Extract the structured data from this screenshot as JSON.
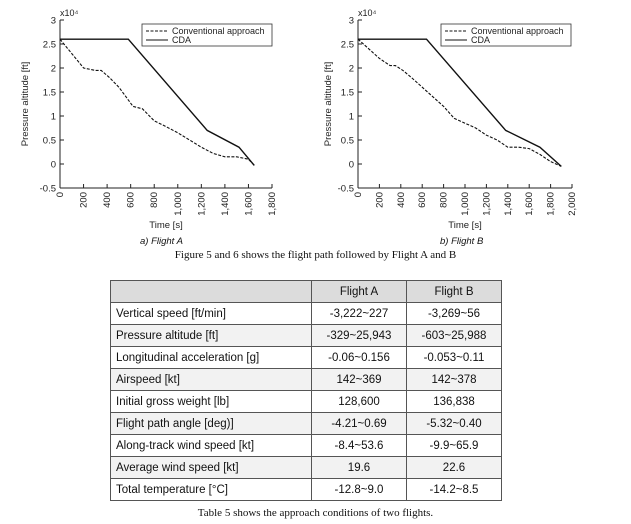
{
  "figure_caption": "Figure 5 and 6 shows the flight path followed by Flight A and B",
  "table_caption": "Table 5 shows the approach conditions of two flights.",
  "chart_data": [
    {
      "type": "line",
      "subcaption": "a) Flight A",
      "xlabel": "Time [s]",
      "ylabel": "Pressure altitude [ft]",
      "exponent_label": "x10⁴",
      "xlim": [
        0,
        1800
      ],
      "ylim": [
        -0.5,
        3
      ],
      "xticks": [
        "0",
        "200",
        "400",
        "600",
        "800",
        "1,000",
        "1,200",
        "1,400",
        "1,600",
        "1,800"
      ],
      "yticks": [
        "-0.5",
        "0",
        "0.5",
        "1",
        "1.5",
        "2",
        "2.5",
        "3"
      ],
      "legend_position": "top-right",
      "series": [
        {
          "name": "Conventional approach",
          "style": "dashed",
          "x": [
            0,
            100,
            200,
            300,
            350,
            420,
            500,
            560,
            620,
            700,
            800,
            900,
            1000,
            1100,
            1200,
            1300,
            1400,
            1500,
            1600,
            1650
          ],
          "y": [
            2.6,
            2.3,
            2.0,
            1.95,
            1.95,
            1.8,
            1.6,
            1.4,
            1.2,
            1.15,
            0.9,
            0.78,
            0.65,
            0.5,
            0.35,
            0.22,
            0.15,
            0.15,
            0.1,
            -0.03
          ]
        },
        {
          "name": "CDA",
          "style": "solid",
          "x": [
            0,
            580,
            1250,
            1520,
            1650
          ],
          "y": [
            2.6,
            2.6,
            0.7,
            0.35,
            -0.03
          ]
        }
      ]
    },
    {
      "type": "line",
      "subcaption": "b) Flight B",
      "xlabel": "Time [s]",
      "ylabel": "Pressure altitude [ft]",
      "exponent_label": "x10⁴",
      "xlim": [
        0,
        2000
      ],
      "ylim": [
        -0.5,
        3
      ],
      "xticks": [
        "0",
        "200",
        "400",
        "600",
        "800",
        "1,000",
        "1,200",
        "1,400",
        "1,600",
        "1,800",
        "2,000"
      ],
      "yticks": [
        "-0.5",
        "0",
        "0.5",
        "1",
        "1.5",
        "2",
        "2.5",
        "3"
      ],
      "legend_position": "top-right",
      "series": [
        {
          "name": "Conventional approach",
          "style": "dashed",
          "x": [
            0,
            100,
            200,
            300,
            350,
            420,
            500,
            600,
            700,
            800,
            900,
            1000,
            1100,
            1200,
            1300,
            1400,
            1500,
            1600,
            1700,
            1800,
            1900
          ],
          "y": [
            2.6,
            2.4,
            2.2,
            2.05,
            2.05,
            1.95,
            1.8,
            1.6,
            1.4,
            1.2,
            0.95,
            0.85,
            0.75,
            0.6,
            0.5,
            0.35,
            0.35,
            0.32,
            0.2,
            0.05,
            -0.05
          ]
        },
        {
          "name": "CDA",
          "style": "solid",
          "x": [
            0,
            640,
            1380,
            1700,
            1900
          ],
          "y": [
            2.6,
            2.6,
            0.7,
            0.35,
            -0.05
          ]
        }
      ]
    }
  ],
  "table": {
    "columns": [
      "",
      "Flight A",
      "Flight B"
    ],
    "rows": [
      [
        "Vertical speed [ft/min]",
        "-3,222~227",
        "-3,269~56"
      ],
      [
        "Pressure altitude [ft]",
        "-329~25,943",
        "-603~25,988"
      ],
      [
        "Longitudinal acceleration [g]",
        "-0.06~0.156",
        "-0.053~0.11"
      ],
      [
        "Airspeed [kt]",
        "142~369",
        "142~378"
      ],
      [
        "Initial gross weight [lb]",
        "128,600",
        "136,838"
      ],
      [
        "Flight path angle [deg)]",
        "-4.21~0.69",
        "-5.32~0.40"
      ],
      [
        "Along-track wind speed [kt]",
        "-8.4~53.6",
        "-9.9~65.9"
      ],
      [
        "Average wind speed [kt]",
        "19.6",
        "22.6"
      ],
      [
        "Total temperature [°C]",
        "-12.8~9.0",
        "-14.2~8.5"
      ]
    ]
  }
}
